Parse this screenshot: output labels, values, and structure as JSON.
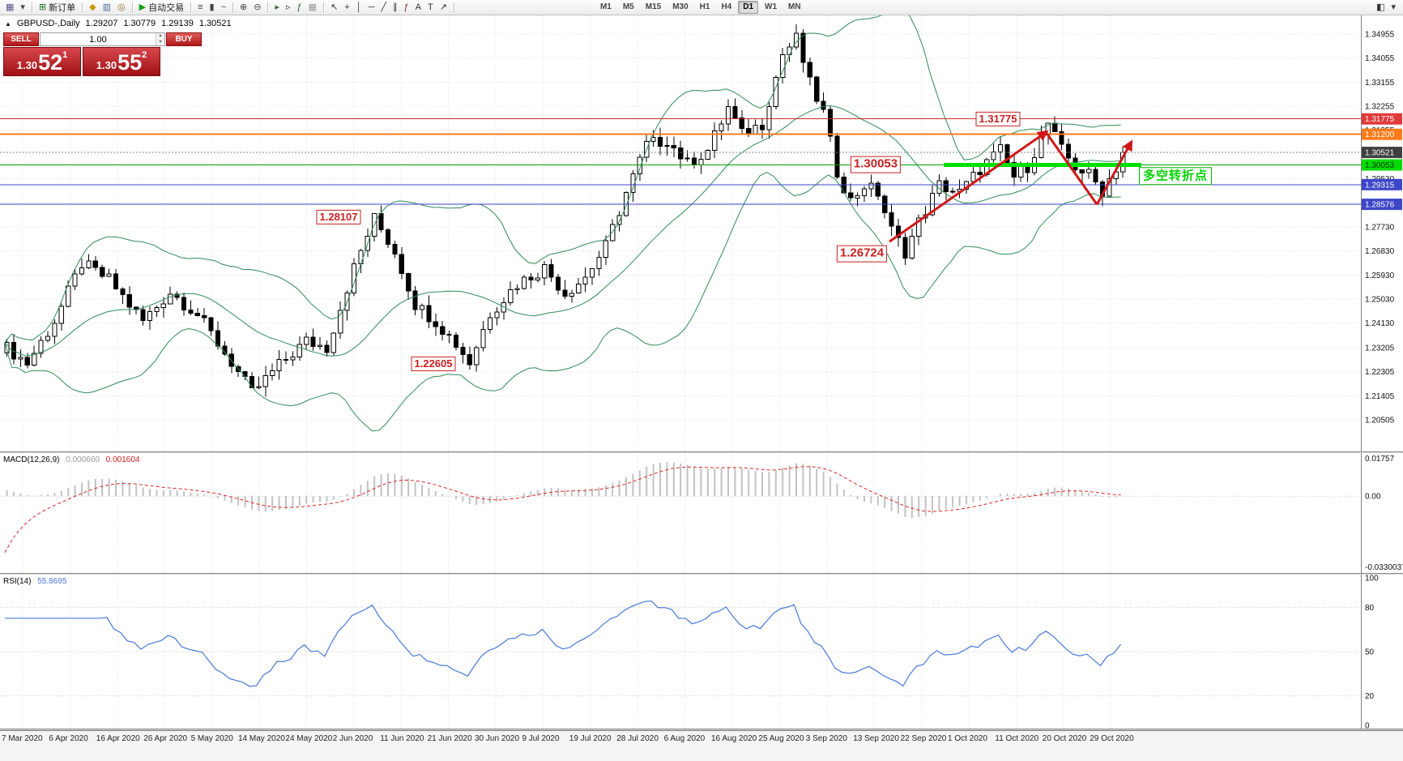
{
  "toolbar": {
    "groups": [
      [
        {
          "name": "new-chart",
          "glyph": "▦",
          "color": "#55558a"
        },
        {
          "name": "chart-profiles",
          "glyph": "▾",
          "color": "#444"
        }
      ],
      [
        {
          "name": "new-order",
          "glyph": "⊞",
          "color": "#1a6c1a",
          "label": "新订单"
        }
      ],
      [
        {
          "name": "market-watch",
          "glyph": "◆",
          "color": "#c79a10"
        },
        {
          "name": "data-window",
          "glyph": "▥",
          "color": "#4a6a9a"
        },
        {
          "name": "navigator",
          "glyph": "◎",
          "color": "#8a6a2a"
        }
      ],
      [
        {
          "name": "autotrading",
          "glyph": "▶",
          "color": "#15a015",
          "label": "自动交易"
        }
      ],
      [
        {
          "name": "bar-chart-mode",
          "glyph": "≡",
          "color": "#444"
        },
        {
          "name": "candlestick-mode",
          "glyph": "▮",
          "color": "#444"
        },
        {
          "name": "line-chart-mode",
          "glyph": "~",
          "color": "#444"
        }
      ],
      [
        {
          "name": "zoom-in",
          "glyph": "⊕",
          "color": "#444"
        },
        {
          "name": "zoom-out",
          "glyph": "⊖",
          "color": "#444"
        }
      ],
      [
        {
          "name": "auto-scroll",
          "glyph": "▸",
          "color": "#446644"
        },
        {
          "name": "chart-shift",
          "glyph": "▹",
          "color": "#444"
        },
        {
          "name": "indicators-list",
          "glyph": "ƒ",
          "color": "#2a6a2a"
        },
        {
          "name": "grid-toggle",
          "glyph": "▦",
          "color": "#999"
        }
      ],
      [
        {
          "name": "cursor-tool",
          "glyph": "↖",
          "color": "#333"
        },
        {
          "name": "crosshair-tool",
          "glyph": "+",
          "color": "#333"
        },
        {
          "name": "vertical-line-tool",
          "glyph": "│",
          "color": "#333"
        },
        {
          "name": "horizontal-line-tool",
          "glyph": "─",
          "color": "#333"
        },
        {
          "name": "trendline-tool",
          "glyph": "╱",
          "color": "#333"
        },
        {
          "name": "channel-tool",
          "glyph": "∥",
          "color": "#333"
        },
        {
          "name": "fibonacci-tool",
          "glyph": "ƒ",
          "color": "#8a2a2a"
        },
        {
          "name": "text-tool",
          "glyph": "A",
          "color": "#333"
        },
        {
          "name": "label-tool",
          "glyph": "T",
          "color": "#333"
        },
        {
          "name": "arrows-tool",
          "glyph": "↗",
          "color": "#333"
        }
      ]
    ],
    "timeframes": {
      "items": [
        "M1",
        "M5",
        "M15",
        "M30",
        "H1",
        "H4",
        "D1",
        "W1",
        "MN"
      ],
      "active": "D1"
    },
    "right_icons": [
      {
        "name": "chart-window-menu",
        "glyph": "◧"
      },
      {
        "name": "toolbar-options",
        "glyph": "▾"
      }
    ]
  },
  "symbol_line": {
    "collapse_icon": "▲",
    "symbol": "GBPUSD-,Daily",
    "open": "1.29207",
    "high": "1.30779",
    "low": "1.29139",
    "close": "1.30521"
  },
  "one_click": {
    "sell_label": "SELL",
    "buy_label": "BUY",
    "lot_value": "1.00",
    "spin_up": "▴",
    "spin_down": "▾",
    "sell_big": "1.30",
    "sell_pips": "52",
    "sell_sup": "1",
    "buy_big": "1.30",
    "buy_pips": "55",
    "buy_sup": "2"
  },
  "price_tags": [
    {
      "text": "1.31775",
      "price": 1.31775,
      "bg": "#e03a3a",
      "fg": "#ffffff"
    },
    {
      "text": "1.31200",
      "price": 1.312,
      "bg": "#ff7b1c",
      "fg": "#ffffff"
    },
    {
      "text": "1.30521",
      "price": 1.30521,
      "bg": "#3f3f3f",
      "fg": "#ffffff"
    },
    {
      "text": "1.30053",
      "price": 1.30053,
      "bg": "#00dc00",
      "fg": "#00320a"
    },
    {
      "text": "1.29315",
      "price": 1.29315,
      "bg": "#3d47c8",
      "fg": "#ffffff"
    },
    {
      "text": "1.28576",
      "price": 1.28576,
      "bg": "#3d47c8",
      "fg": "#ffffff"
    }
  ],
  "chart_data": {
    "type": "candlestick",
    "symbol": "GBPUSD",
    "period": "Daily",
    "x_axis_dates": [
      "7 Mar 2020",
      "6 Apr 2020",
      "16 Apr 2020",
      "26 Apr 2020",
      "5 May 2020",
      "14 May 2020",
      "24 May 2020",
      "2 Jun 2020",
      "11 Jun 2020",
      "21 Jun 2020",
      "30 Jun 2020",
      "9 Jul 2020",
      "19 Jul 2020",
      "28 Jul 2020",
      "6 Aug 2020",
      "16 Aug 2020",
      "25 Aug 2020",
      "3 Sep 2020",
      "13 Sep 2020",
      "22 Sep 2020",
      "1 Oct 2020",
      "11 Oct 2020",
      "20 Oct 2020",
      "29 Oct 2020"
    ],
    "y_axis_labels": [
      "1.34955",
      "1.34055",
      "1.33155",
      "1.32255",
      "1.31355",
      "1.30455",
      "1.29530",
      "1.28605",
      "1.27730",
      "1.26830",
      "1.25930",
      "1.25030",
      "1.24130",
      "1.23205",
      "1.22305",
      "1.21405",
      "1.20505"
    ],
    "num_candles": 165,
    "close_waypoints": [
      [
        0,
        1.232
      ],
      [
        3,
        1.2262
      ],
      [
        7,
        1.242
      ],
      [
        11,
        1.2635
      ],
      [
        15,
        1.2575
      ],
      [
        20,
        1.242
      ],
      [
        24,
        1.253
      ],
      [
        28,
        1.2445
      ],
      [
        33,
        1.2265
      ],
      [
        36,
        1.215
      ],
      [
        40,
        1.2255
      ],
      [
        44,
        1.2345
      ],
      [
        47,
        1.232
      ],
      [
        51,
        1.262
      ],
      [
        54,
        1.2805
      ],
      [
        57,
        1.268
      ],
      [
        60,
        1.2485
      ],
      [
        63,
        1.242
      ],
      [
        66,
        1.2335
      ],
      [
        68,
        1.2265
      ],
      [
        71,
        1.245
      ],
      [
        75,
        1.256
      ],
      [
        79,
        1.262
      ],
      [
        82,
        1.2525
      ],
      [
        85,
        1.2585
      ],
      [
        88,
        1.27
      ],
      [
        91,
        1.29
      ],
      [
        94,
        1.308
      ],
      [
        97,
        1.31
      ],
      [
        100,
        1.301
      ],
      [
        103,
        1.306
      ],
      [
        106,
        1.322
      ],
      [
        108,
        1.312
      ],
      [
        111,
        1.316
      ],
      [
        114,
        1.342
      ],
      [
        116,
        1.3478
      ],
      [
        118,
        1.331
      ],
      [
        120,
        1.32
      ],
      [
        122,
        1.298
      ],
      [
        124,
        1.287
      ],
      [
        126,
        1.293
      ],
      [
        128,
        1.29
      ],
      [
        130,
        1.276
      ],
      [
        132,
        1.268
      ],
      [
        134,
        1.279
      ],
      [
        137,
        1.293
      ],
      [
        140,
        1.29
      ],
      [
        143,
        1.299
      ],
      [
        146,
        1.306
      ],
      [
        148,
        1.296
      ],
      [
        150,
        1.3
      ],
      [
        153,
        1.316
      ],
      [
        155,
        1.306
      ],
      [
        157,
        1.3
      ],
      [
        159,
        1.2968
      ],
      [
        161,
        1.291
      ],
      [
        163,
        1.2995
      ],
      [
        164,
        1.3052
      ]
    ],
    "levels": [
      {
        "label": "1.31775",
        "price": 1.31775,
        "color": "#cc2a2a",
        "style": "solid",
        "width": 1
      },
      {
        "label": "1.31200",
        "price": 1.312,
        "color": "#ff7b1c",
        "style": "solid",
        "width": 2
      },
      {
        "label": "1.30521",
        "price": 1.30521,
        "color": "#888888",
        "style": "dotted",
        "width": 1
      },
      {
        "label": "1.30053",
        "price": 1.30053,
        "color": "#00a000",
        "style": "solid",
        "width": 1
      },
      {
        "label": "1.29315",
        "price": 1.29315,
        "color": "#3d47c8",
        "style": "solid",
        "width": 1
      },
      {
        "label": "1.28576",
        "price": 1.28576,
        "color": "#3d47c8",
        "style": "solid",
        "width": 1
      }
    ],
    "support_segment": {
      "price": 1.30053,
      "from_index": 138,
      "to_index": 167,
      "color": "#00e000",
      "width": 5
    },
    "annotations": [
      {
        "text": "1.31775",
        "index": 146,
        "price": 1.31775,
        "type": "red",
        "size": 13
      },
      {
        "text": "1.30053",
        "index": 128,
        "price": 1.30053,
        "type": "red",
        "size": 15
      },
      {
        "text": "1.28107",
        "index": 49,
        "price": 1.28107,
        "type": "red",
        "size": 13
      },
      {
        "text": "1.26724",
        "index": 126,
        "price": 1.26724,
        "type": "red",
        "size": 15
      },
      {
        "text": "1.22605",
        "index": 63,
        "price": 1.22605,
        "type": "red",
        "size": 13
      },
      {
        "text": "多空转折点",
        "index": 172,
        "price": 1.29643,
        "type": "green",
        "size": 15
      }
    ],
    "trend_arrows": [
      {
        "from": [
          130,
          1.2718
        ],
        "to": [
          153,
          1.3128
        ],
        "head": true
      },
      {
        "from": [
          153,
          1.3128
        ],
        "to": [
          160.5,
          1.2857
        ],
        "head": false
      },
      {
        "from": [
          160.5,
          1.2857
        ],
        "to": [
          165.5,
          1.3089
        ],
        "head": true
      }
    ],
    "indicators": {
      "bollinger": {
        "period": 20,
        "deviation": 2,
        "color": "#2e8b57"
      },
      "macd": {
        "label": "MACD(12,26,9)",
        "value_main": "0.000660",
        "value_signal": "0.001604",
        "scale_max": "0.01757",
        "scale_zero": "0.00",
        "scale_min": "-0.0330037"
      },
      "rsi": {
        "label": "RSI(14)",
        "value": "55.8695",
        "levels": [
          80,
          50,
          20
        ],
        "scale_labels": [
          "100",
          "80",
          "50",
          "20",
          "0"
        ]
      }
    }
  }
}
